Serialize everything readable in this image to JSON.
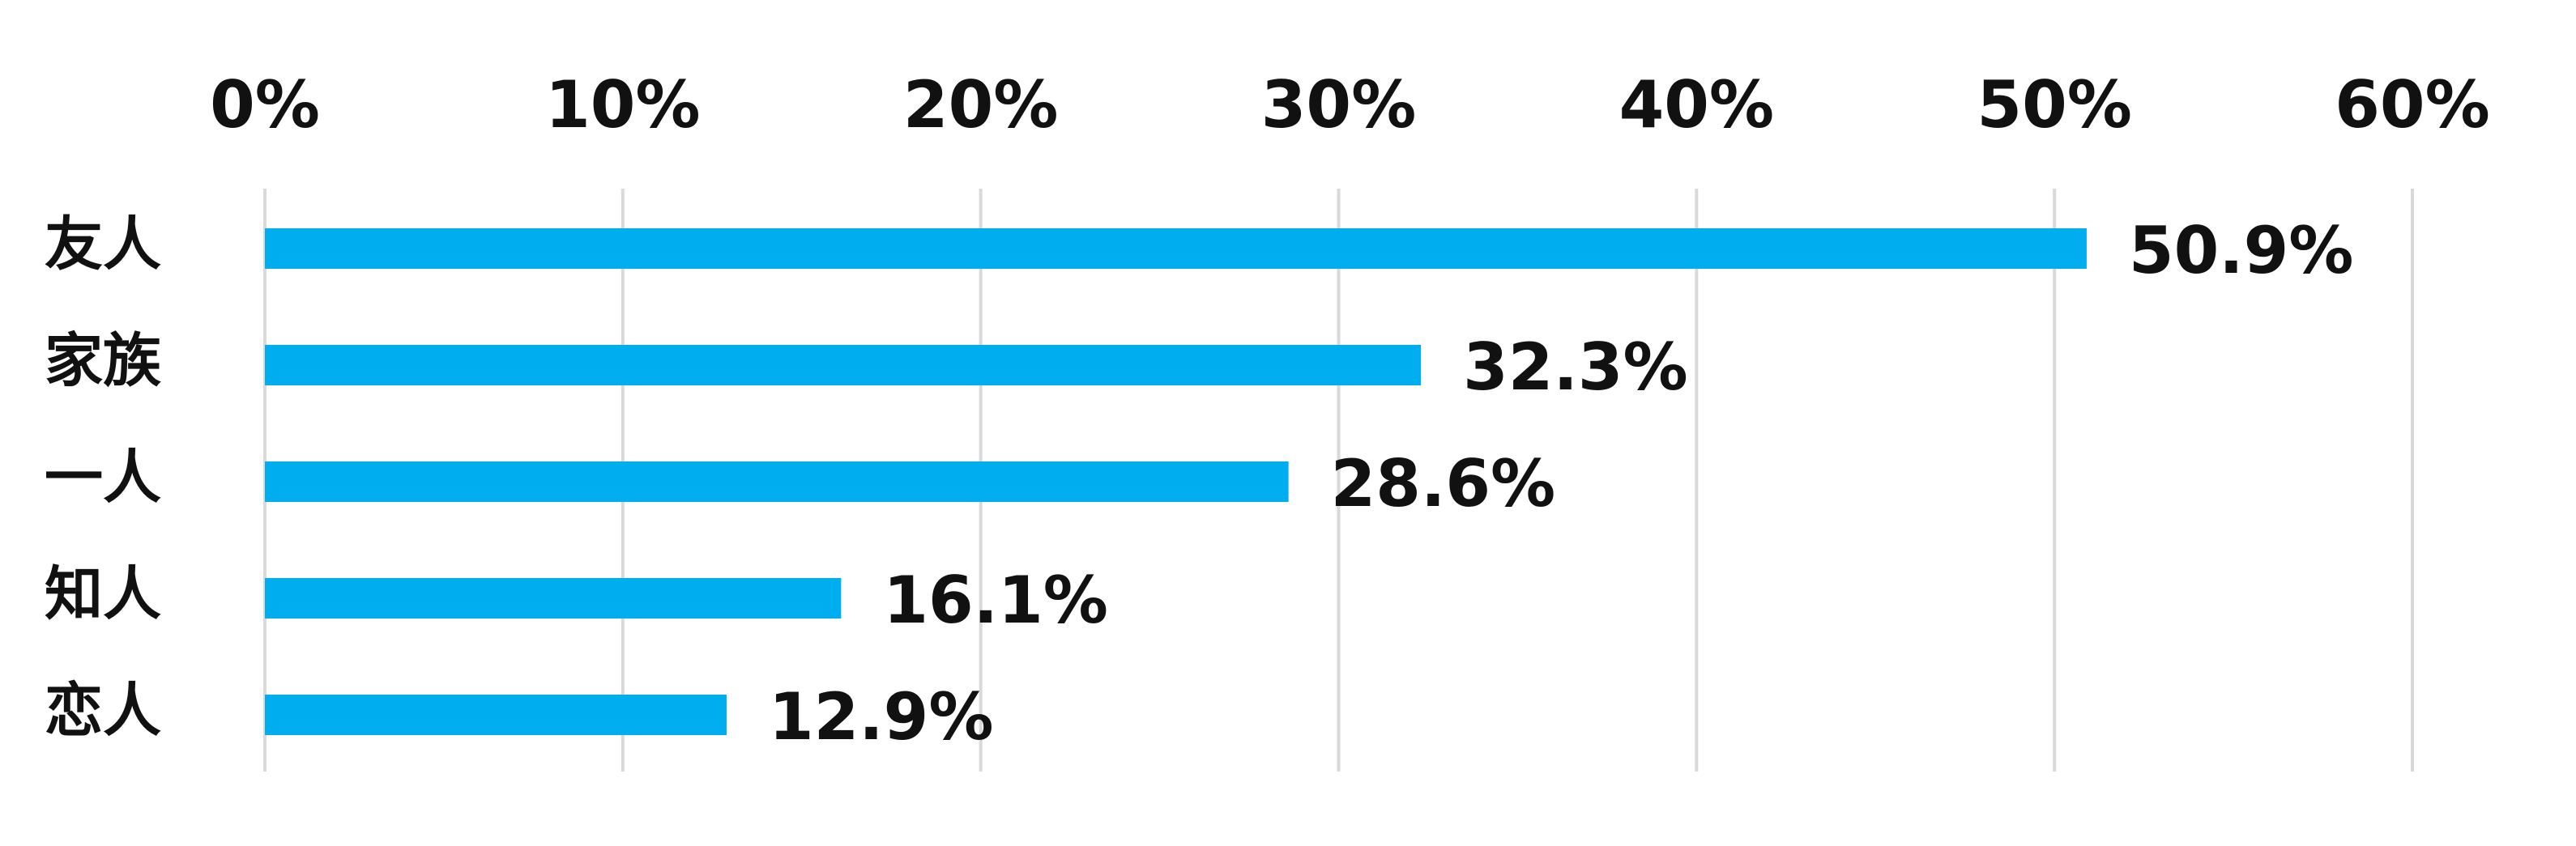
{
  "chart_data": {
    "type": "bar",
    "orientation": "horizontal",
    "categories": [
      "友人",
      "家族",
      "一人",
      "知人",
      "恋人"
    ],
    "values": [
      50.9,
      32.3,
      28.6,
      16.1,
      12.9
    ],
    "value_labels": [
      "50.9%",
      "32.3%",
      "28.6%",
      "16.1%",
      "12.9%"
    ],
    "x_ticks": [
      "0%",
      "10%",
      "20%",
      "30%",
      "40%",
      "50%",
      "60%"
    ],
    "xlim": [
      0,
      60
    ],
    "x_axis_position": "top",
    "grid": true,
    "legend": "none",
    "title": "",
    "xlabel": "",
    "ylabel": "",
    "colors": {
      "bar": "#00AEEF",
      "grid": "#D9D9D9",
      "text": "#111111"
    }
  }
}
